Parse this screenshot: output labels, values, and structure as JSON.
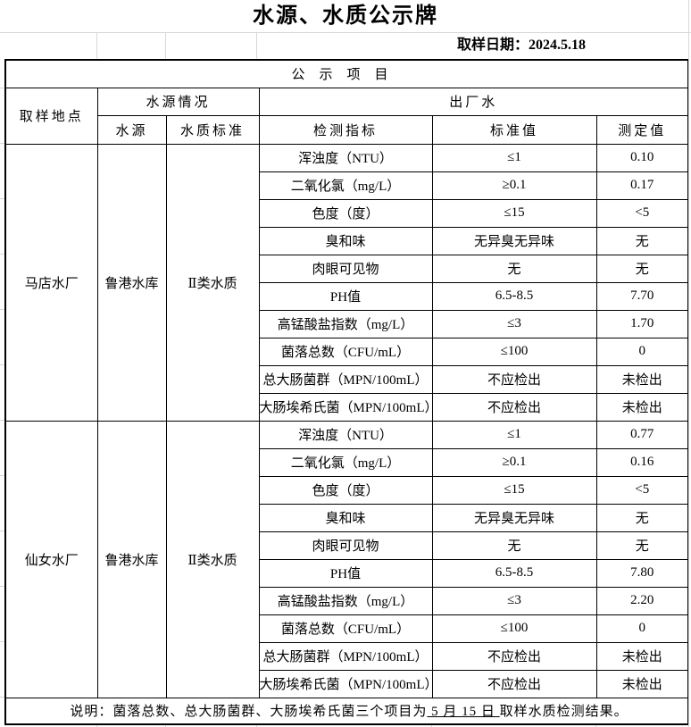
{
  "title": "水源、水质公示牌",
  "sampling_date": "取样日期：2024.5.18",
  "table": {
    "section_header": "公示项目",
    "headers": {
      "location": "取样地点",
      "source_group": "水源情况",
      "factory_water": "出厂水",
      "source": "水源",
      "quality_standard": "水质标准",
      "indicator": "检测指标",
      "standard_value": "标准值",
      "measured_value": "测定值"
    },
    "plants": [
      {
        "location": "马店水厂",
        "source": "鲁港水库",
        "quality": "Ⅱ类水质",
        "rows": [
          {
            "indicator": "浑浊度（NTU）",
            "standard": "≤1",
            "measured": "0.10"
          },
          {
            "indicator": "二氧化氯（mg/L）",
            "standard": "≥0.1",
            "measured": "0.17"
          },
          {
            "indicator": "色度（度）",
            "standard": "≤15",
            "measured": "<5"
          },
          {
            "indicator": "臭和味",
            "standard": "无异臭无异味",
            "measured": "无"
          },
          {
            "indicator": "肉眼可见物",
            "standard": "无",
            "measured": "无"
          },
          {
            "indicator": "PH值",
            "standard": "6.5-8.5",
            "measured": "7.70"
          },
          {
            "indicator": "高锰酸盐指数（mg/L）",
            "standard": "≤3",
            "measured": "1.70"
          },
          {
            "indicator": "菌落总数（CFU/mL）",
            "standard": "≤100",
            "measured": "0"
          },
          {
            "indicator": "总大肠菌群（MPN/100mL）",
            "standard": "不应检出",
            "measured": "未检出"
          },
          {
            "indicator": "大肠埃希氏菌（MPN/100mL）",
            "standard": "不应检出",
            "measured": "未检出"
          }
        ]
      },
      {
        "location": "仙女水厂",
        "source": "鲁港水库",
        "quality": "Ⅱ类水质",
        "rows": [
          {
            "indicator": "浑浊度（NTU）",
            "standard": "≤1",
            "measured": "0.77"
          },
          {
            "indicator": "二氧化氯（mg/L）",
            "standard": "≥0.1",
            "measured": "0.16"
          },
          {
            "indicator": "色度（度）",
            "standard": "≤15",
            "measured": "<5"
          },
          {
            "indicator": "臭和味",
            "standard": "无异臭无异味",
            "measured": "无"
          },
          {
            "indicator": "肉眼可见物",
            "standard": "无",
            "measured": "无"
          },
          {
            "indicator": "PH值",
            "standard": "6.5-8.5",
            "measured": "7.80"
          },
          {
            "indicator": "高锰酸盐指数（mg/L）",
            "standard": "≤3",
            "measured": "2.20"
          },
          {
            "indicator": "菌落总数（CFU/mL）",
            "standard": "≤100",
            "measured": "0"
          },
          {
            "indicator": "总大肠菌群（MPN/100mL）",
            "standard": "不应检出",
            "measured": "未检出"
          },
          {
            "indicator": "大肠埃希氏菌（MPN/100mL）",
            "standard": "不应检出",
            "measured": "未检出"
          }
        ]
      }
    ]
  },
  "note": {
    "prefix": "说明：菌落总数、总大肠菌群、大肠埃希氏菌三个项目为",
    "underlined": " 5 月 15 日 ",
    "suffix": "取样水质检测结果。"
  }
}
